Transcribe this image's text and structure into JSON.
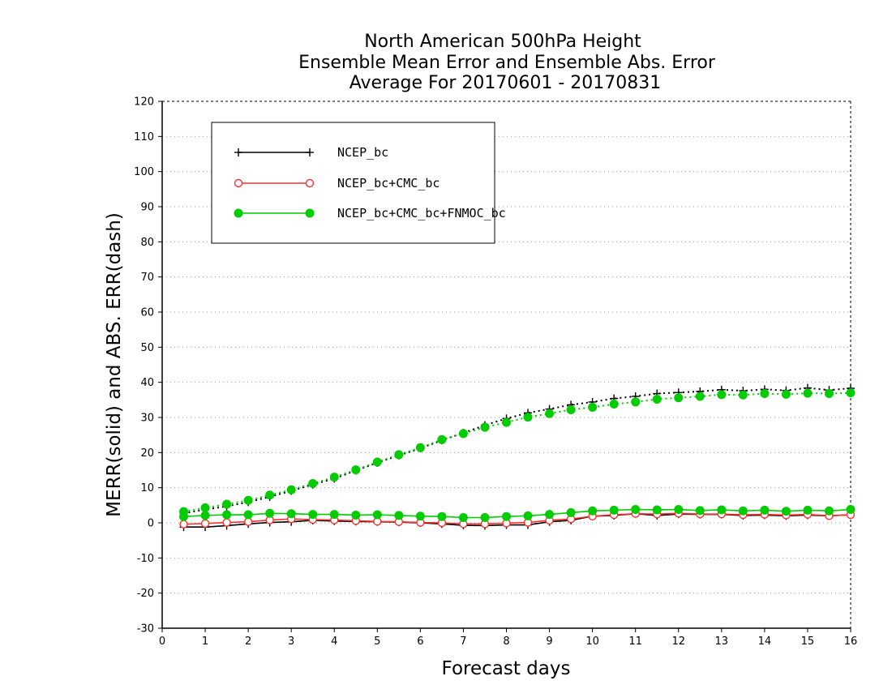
{
  "chart_data": {
    "type": "line",
    "title": [
      "North American 500hPa Height",
      "Ensemble Mean Error and Ensemble Abs. Error",
      "Average For 20170601 - 20170831"
    ],
    "xlabel": "Forecast days",
    "ylabel": "MERR(solid) and ABS. ERR(dash)",
    "xlim": [
      0,
      16
    ],
    "ylim": [
      -30,
      120
    ],
    "xticks": [
      0,
      1,
      2,
      3,
      4,
      5,
      6,
      7,
      8,
      9,
      10,
      11,
      12,
      13,
      14,
      15,
      16
    ],
    "yticks": [
      -30,
      -20,
      -10,
      0,
      10,
      20,
      30,
      40,
      50,
      60,
      70,
      80,
      90,
      100,
      110,
      120
    ],
    "grid": true,
    "legend_position": "top-left",
    "x": [
      0.5,
      1,
      1.5,
      2,
      2.5,
      3,
      3.5,
      4,
      4.5,
      5,
      5.5,
      6,
      6.5,
      7,
      7.5,
      8,
      8.5,
      9,
      9.5,
      10,
      10.5,
      11,
      11.5,
      12,
      12.5,
      13,
      13.5,
      14,
      14.5,
      15,
      15.5,
      16
    ],
    "series": [
      {
        "name": "NCEP_bc",
        "color": "#000000",
        "marker": "plus",
        "merr": [
          -1.2,
          -1.2,
          -0.8,
          -0.3,
          0.1,
          0.3,
          0.7,
          0.5,
          0.4,
          0.3,
          0.2,
          0.0,
          -0.3,
          -0.7,
          -0.8,
          -0.6,
          -0.6,
          0.3,
          0.7,
          1.9,
          2.1,
          2.6,
          2.1,
          2.5,
          2.4,
          2.4,
          2.1,
          2.2,
          2.0,
          2.2,
          2.0,
          2.3
        ],
        "abs_err": [
          2.7,
          3.8,
          4.7,
          5.9,
          7.4,
          9.1,
          10.9,
          12.6,
          14.9,
          17.1,
          19.2,
          21.2,
          23.5,
          25.6,
          27.8,
          29.7,
          31.3,
          32.4,
          33.6,
          34.4,
          35.4,
          36.0,
          36.8,
          37.1,
          37.4,
          37.9,
          37.6,
          38.0,
          37.7,
          38.4,
          37.8,
          38.3
        ]
      },
      {
        "name": "NCEP_bc+CMC_bc",
        "color": "#ff3030",
        "marker": "open-circle",
        "merr": [
          -0.4,
          -0.2,
          0.1,
          0.3,
          0.8,
          1.1,
          0.9,
          0.8,
          0.6,
          0.4,
          0.3,
          0.1,
          0.0,
          -0.3,
          -0.3,
          -0.1,
          0.1,
          0.7,
          1.1,
          1.9,
          2.3,
          2.6,
          2.5,
          2.7,
          2.5,
          2.5,
          2.3,
          2.4,
          2.2,
          2.4,
          2.0,
          2.3
        ]
      },
      {
        "name": "NCEP_bc+CMC_bc+FNMOC_bc",
        "color": "#00cc00",
        "marker": "filled-circle",
        "merr": [
          1.8,
          2.1,
          2.3,
          2.3,
          2.7,
          2.6,
          2.4,
          2.4,
          2.2,
          2.3,
          2.1,
          1.9,
          1.8,
          1.5,
          1.5,
          1.8,
          2.0,
          2.4,
          2.9,
          3.4,
          3.6,
          3.8,
          3.7,
          3.8,
          3.5,
          3.7,
          3.4,
          3.6,
          3.3,
          3.6,
          3.4,
          3.8
        ],
        "abs_err": [
          3.2,
          4.3,
          5.3,
          6.4,
          7.9,
          9.4,
          11.2,
          13.0,
          15.1,
          17.3,
          19.4,
          21.4,
          23.7,
          25.4,
          27.2,
          28.6,
          30.1,
          31.1,
          32.2,
          32.9,
          33.8,
          34.4,
          35.2,
          35.6,
          36.0,
          36.5,
          36.4,
          36.8,
          36.6,
          36.9,
          36.8,
          37.0
        ]
      }
    ]
  }
}
